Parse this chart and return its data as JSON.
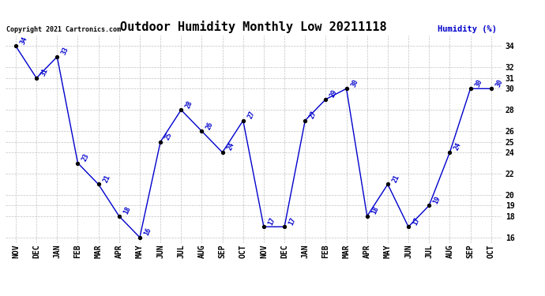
{
  "title": "Outdoor Humidity Monthly Low 20211118",
  "ylabel": "Humidity (%)",
  "copyright": "Copyright 2021 Cartronics.com",
  "months": [
    "NOV",
    "DEC",
    "JAN",
    "FEB",
    "MAR",
    "APR",
    "MAY",
    "JUN",
    "JUL",
    "AUG",
    "SEP",
    "OCT",
    "NOV",
    "DEC",
    "JAN",
    "FEB",
    "MAR",
    "APR",
    "MAY",
    "JUN",
    "JUL",
    "AUG",
    "SEP",
    "OCT"
  ],
  "values": [
    34,
    31,
    33,
    23,
    21,
    18,
    16,
    25,
    28,
    26,
    24,
    27,
    17,
    17,
    27,
    29,
    30,
    18,
    21,
    17,
    19,
    24,
    30,
    30
  ],
  "ylim": [
    15.5,
    35
  ],
  "yticks": [
    16,
    18,
    19,
    20,
    22,
    24,
    25,
    26,
    28,
    30,
    31,
    32,
    34
  ],
  "line_color": "#0000cc",
  "marker_color": "black",
  "label_color": "#0000cc",
  "grid_color": "#bbbbbb",
  "background_color": "#ffffff",
  "title_fontsize": 11,
  "label_fontsize": 7,
  "ylabel_color": "#0000cc",
  "copyright_color": "black"
}
